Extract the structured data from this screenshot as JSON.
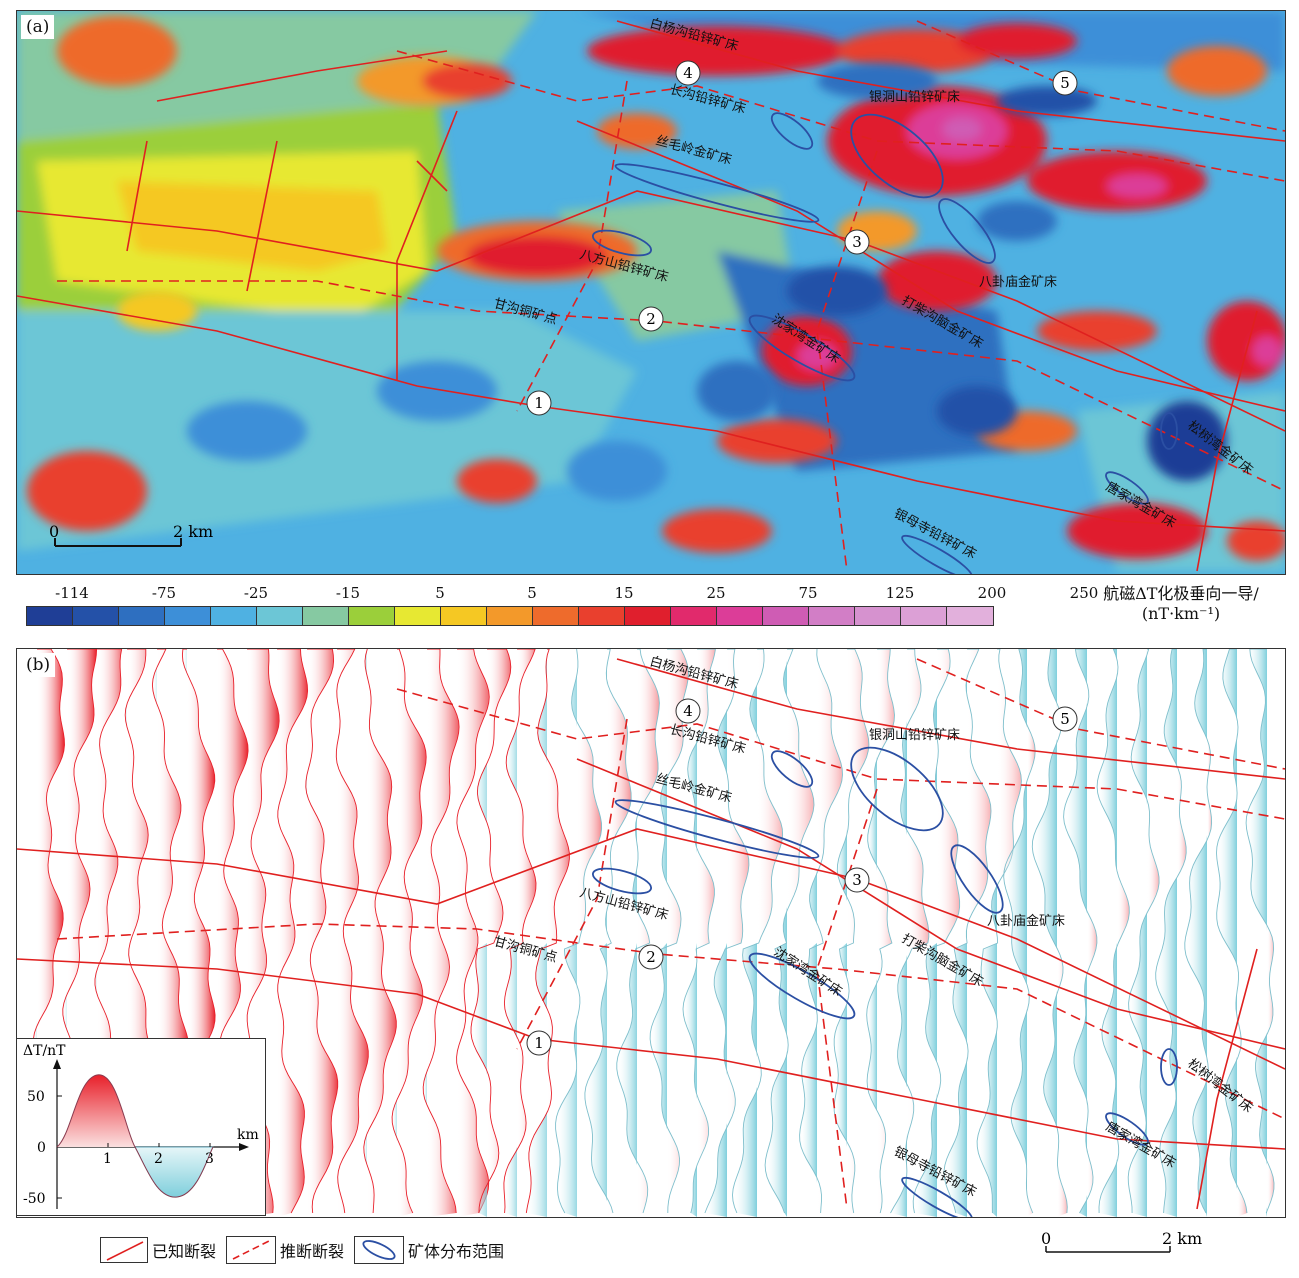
{
  "panel_a": {
    "label": "(a)",
    "scale_zero": "0",
    "scale_km": "2 km"
  },
  "panel_b": {
    "label": "(b)"
  },
  "colorbar": {
    "ticks": [
      "-114",
      "-75",
      "-25",
      "-15",
      "5",
      "5",
      "15",
      "25",
      "75",
      "125",
      "200",
      "250"
    ],
    "colors": [
      "#1f3e96",
      "#2451a8",
      "#2e6fc0",
      "#3d8fd8",
      "#4fb1e2",
      "#6cc6d6",
      "#86c9a2",
      "#9bcf3a",
      "#e7e832",
      "#f5c823",
      "#f3992a",
      "#ee6b2c",
      "#e9402e",
      "#e01f2d",
      "#e12a6c",
      "#dc3d98",
      "#cf5cb4",
      "#d27ec6",
      "#d692cf",
      "#dca0d6",
      "#e2b0dc"
    ],
    "unit_line1": "航磁ΔT化极垂向一导/",
    "unit_line2": "(nT·km⁻¹)"
  },
  "faults": {
    "f1": "1",
    "f2": "2",
    "f3": "3",
    "f4": "4",
    "f5": "5"
  },
  "deposits": {
    "baiyanggou": "白杨沟铅锌矿床",
    "changgou": "长沟铅锌矿床",
    "yindongshan": "银洞山铅锌矿床",
    "simaoling": "丝毛岭金矿床",
    "bafangshan": "八方山铅锌矿床",
    "baguamiao": "八卦庙金矿床",
    "ganggou": "甘沟铜矿点",
    "dalixigou": "打柴沟脑金矿床",
    "shenjiawan": "沈家湾金矿床",
    "songshuwan": "松树湾金矿床",
    "tangjiawan": "唐家湾金矿床",
    "yinmusi": "银母寺铅锌矿床"
  },
  "inset": {
    "ylabel": "ΔT/nT",
    "xunit": "km",
    "yticks": [
      "50",
      "0",
      "-50"
    ],
    "xticks": [
      "1",
      "2",
      "3"
    ]
  },
  "legend": {
    "known_fault": "已知断裂",
    "inferred_fault": "推断断裂",
    "orebody": "矿体分布范围"
  },
  "scale_b": {
    "zero": "0",
    "km": "2 km"
  },
  "colors": {
    "fault": "#e0201f",
    "orebody": "#2b4fa3",
    "wiggle_pos": "#e8202a",
    "wiggle_neg": "#7fcfdc"
  }
}
